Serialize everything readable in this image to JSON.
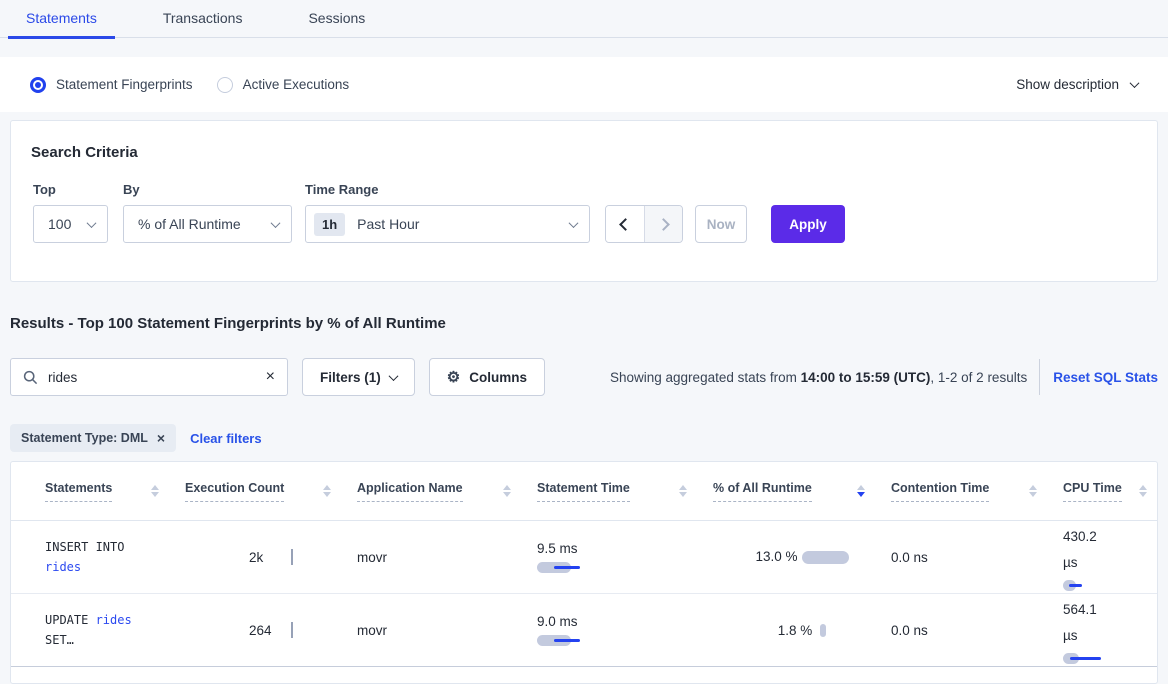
{
  "tabs": {
    "items": [
      {
        "label": "Statements"
      },
      {
        "label": "Transactions"
      },
      {
        "label": "Sessions"
      }
    ],
    "active": "Statements"
  },
  "viewbar": {
    "radio_fingerprints": "Statement Fingerprints",
    "radio_active": "Active Executions",
    "selected": "Statement Fingerprints",
    "show_description": "Show description"
  },
  "criteria": {
    "title": "Search Criteria",
    "top_label": "Top",
    "top_value": "100",
    "by_label": "By",
    "by_value": "% of All Runtime",
    "time_label": "Time Range",
    "time_badge": "1h",
    "time_value": "Past Hour",
    "now": "Now",
    "apply": "Apply"
  },
  "results": {
    "heading": "Results - Top 100 Statement Fingerprints by % of All Runtime",
    "search_value": "rides",
    "filters": "Filters (1)",
    "columns": "Columns",
    "stats_prefix": "Showing aggregated stats from ",
    "stats_bold": "14:00 to 15:59 (UTC)",
    "stats_suffix": ", 1-2 of 2 results",
    "reset": "Reset SQL Stats",
    "pill": "Statement Type: DML",
    "clear": "Clear filters"
  },
  "table": {
    "columns": [
      "Statements",
      "Execution Count",
      "Application Name",
      "Statement Time",
      "% of All Runtime",
      "Contention Time",
      "CPU Time"
    ],
    "sort": {
      "column": "% of All Runtime",
      "direction": "desc"
    },
    "rows": [
      {
        "statement": [
          {
            "text": "INSERT INTO ",
            "kind": "keyword"
          },
          {
            "text": "rides",
            "kind": "link"
          }
        ],
        "execution_count": "2k",
        "application_name": "movr",
        "statement_time": "9.5 ms",
        "pct_of_all_runtime": "13.0 %",
        "contention_time": "0.0 ns",
        "cpu_time": "430.2 µs"
      },
      {
        "statement": [
          {
            "text": "UPDATE ",
            "kind": "keyword"
          },
          {
            "text": "rides",
            "kind": "link"
          },
          {
            "text": " SET…",
            "kind": "keyword"
          }
        ],
        "execution_count": "264",
        "application_name": "movr",
        "statement_time": "9.0 ms",
        "pct_of_all_runtime": "1.8 %",
        "contention_time": "0.0 ns",
        "cpu_time": "564.1 µs"
      }
    ]
  },
  "colors": {
    "accent_blue": "#2b49e8",
    "link_blue": "#2952e8",
    "code_link_blue": "#2b49f0",
    "apply_purple": "#5b2be8",
    "bar_gray": "#c3cade",
    "bar_blue": "#2442f0",
    "pill_bg": "#e7ecf3",
    "page_bg": "#f5f7fa"
  }
}
